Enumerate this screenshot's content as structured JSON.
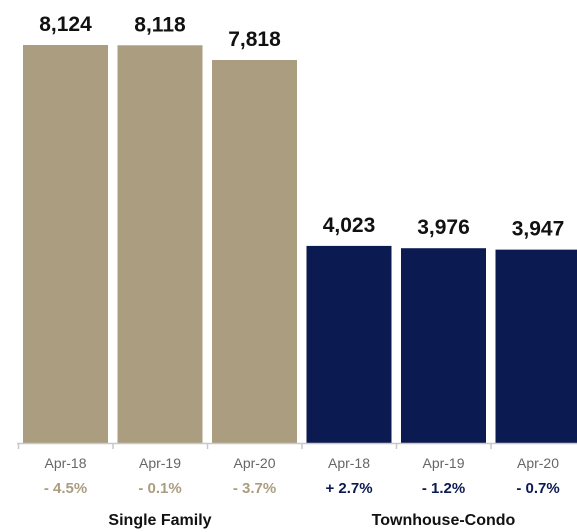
{
  "chart_data": {
    "type": "bar",
    "groups": [
      {
        "name": "Single Family",
        "color": "#ab9d7f",
        "change_color": "#ab9d7f",
        "bars": [
          {
            "date": "Apr-18",
            "value": 8124,
            "value_label": "8,124",
            "change": "- 4.5%"
          },
          {
            "date": "Apr-19",
            "value": 8118,
            "value_label": "8,118",
            "change": "- 0.1%"
          },
          {
            "date": "Apr-20",
            "value": 7818,
            "value_label": "7,818",
            "change": "- 3.7%"
          }
        ]
      },
      {
        "name": "Townhouse-Condo",
        "color": "#0c1a52",
        "change_color": "#0c1a52",
        "bars": [
          {
            "date": "Apr-18",
            "value": 4023,
            "value_label": "4,023",
            "change": "+ 2.7%"
          },
          {
            "date": "Apr-19",
            "value": 3976,
            "value_label": "3,976",
            "change": "- 1.2%"
          },
          {
            "date": "Apr-20",
            "value": 3947,
            "value_label": "3,947",
            "change": "- 0.7%"
          }
        ]
      }
    ],
    "ylim": [
      0,
      8124
    ],
    "grid": false,
    "legend": "none",
    "axis_color": "#c8c8c8"
  }
}
